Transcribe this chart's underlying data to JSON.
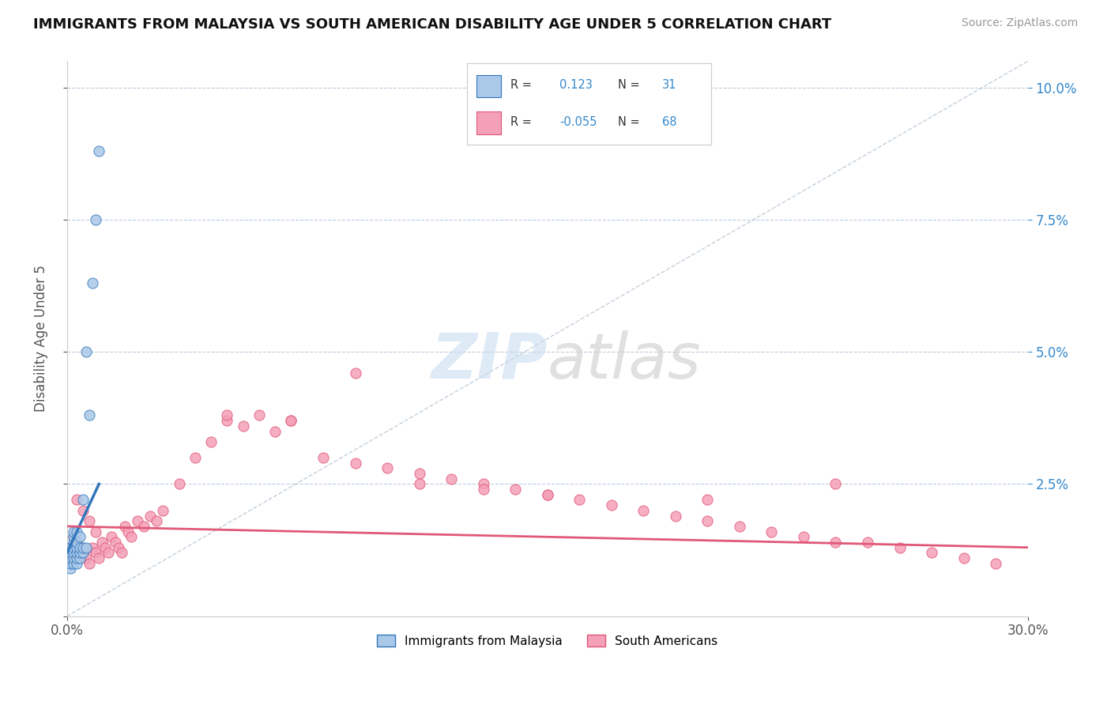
{
  "title": "IMMIGRANTS FROM MALAYSIA VS SOUTH AMERICAN DISABILITY AGE UNDER 5 CORRELATION CHART",
  "source": "Source: ZipAtlas.com",
  "ylabel": "Disability Age Under 5",
  "xlim": [
    0.0,
    0.3
  ],
  "ylim": [
    0.0,
    0.105
  ],
  "r_malaysia": 0.123,
  "n_malaysia": 31,
  "r_south_american": -0.055,
  "n_south_american": 68,
  "color_malaysia": "#aac8e8",
  "color_south_american": "#f4a0b8",
  "line_color_malaysia": "#3377bb",
  "line_color_south_american": "#e05878",
  "malaysia_scatter_x": [
    0.001,
    0.001,
    0.001,
    0.001,
    0.001,
    0.002,
    0.002,
    0.002,
    0.002,
    0.002,
    0.002,
    0.002,
    0.003,
    0.003,
    0.003,
    0.003,
    0.003,
    0.003,
    0.004,
    0.004,
    0.004,
    0.004,
    0.005,
    0.005,
    0.005,
    0.006,
    0.006,
    0.007,
    0.008,
    0.009,
    0.01
  ],
  "malaysia_scatter_y": [
    0.009,
    0.01,
    0.011,
    0.012,
    0.013,
    0.01,
    0.011,
    0.012,
    0.013,
    0.014,
    0.015,
    0.016,
    0.01,
    0.011,
    0.012,
    0.013,
    0.014,
    0.016,
    0.011,
    0.012,
    0.013,
    0.015,
    0.012,
    0.013,
    0.022,
    0.013,
    0.05,
    0.038,
    0.063,
    0.075,
    0.088
  ],
  "south_american_scatter_x": [
    0.001,
    0.002,
    0.002,
    0.003,
    0.004,
    0.005,
    0.006,
    0.007,
    0.008,
    0.009,
    0.01,
    0.011,
    0.012,
    0.013,
    0.014,
    0.015,
    0.016,
    0.017,
    0.018,
    0.019,
    0.02,
    0.022,
    0.024,
    0.026,
    0.028,
    0.03,
    0.035,
    0.04,
    0.045,
    0.05,
    0.055,
    0.06,
    0.065,
    0.07,
    0.08,
    0.09,
    0.1,
    0.11,
    0.12,
    0.13,
    0.14,
    0.15,
    0.16,
    0.17,
    0.18,
    0.19,
    0.2,
    0.21,
    0.22,
    0.23,
    0.24,
    0.25,
    0.26,
    0.27,
    0.28,
    0.29,
    0.003,
    0.005,
    0.007,
    0.009,
    0.05,
    0.07,
    0.09,
    0.11,
    0.13,
    0.15,
    0.2,
    0.24
  ],
  "south_american_scatter_y": [
    0.013,
    0.012,
    0.015,
    0.014,
    0.013,
    0.012,
    0.011,
    0.01,
    0.013,
    0.012,
    0.011,
    0.014,
    0.013,
    0.012,
    0.015,
    0.014,
    0.013,
    0.012,
    0.017,
    0.016,
    0.015,
    0.018,
    0.017,
    0.019,
    0.018,
    0.02,
    0.025,
    0.03,
    0.033,
    0.037,
    0.036,
    0.038,
    0.035,
    0.037,
    0.03,
    0.029,
    0.028,
    0.027,
    0.026,
    0.025,
    0.024,
    0.023,
    0.022,
    0.021,
    0.02,
    0.019,
    0.018,
    0.017,
    0.016,
    0.015,
    0.014,
    0.014,
    0.013,
    0.012,
    0.011,
    0.01,
    0.022,
    0.02,
    0.018,
    0.016,
    0.038,
    0.037,
    0.046,
    0.025,
    0.024,
    0.023,
    0.022,
    0.025
  ],
  "malaysia_trend_x": [
    0.0,
    0.01
  ],
  "malaysia_trend_y": [
    0.012,
    0.025
  ],
  "south_american_trend_x": [
    0.0,
    0.3
  ],
  "south_american_trend_y": [
    0.017,
    0.013
  ]
}
